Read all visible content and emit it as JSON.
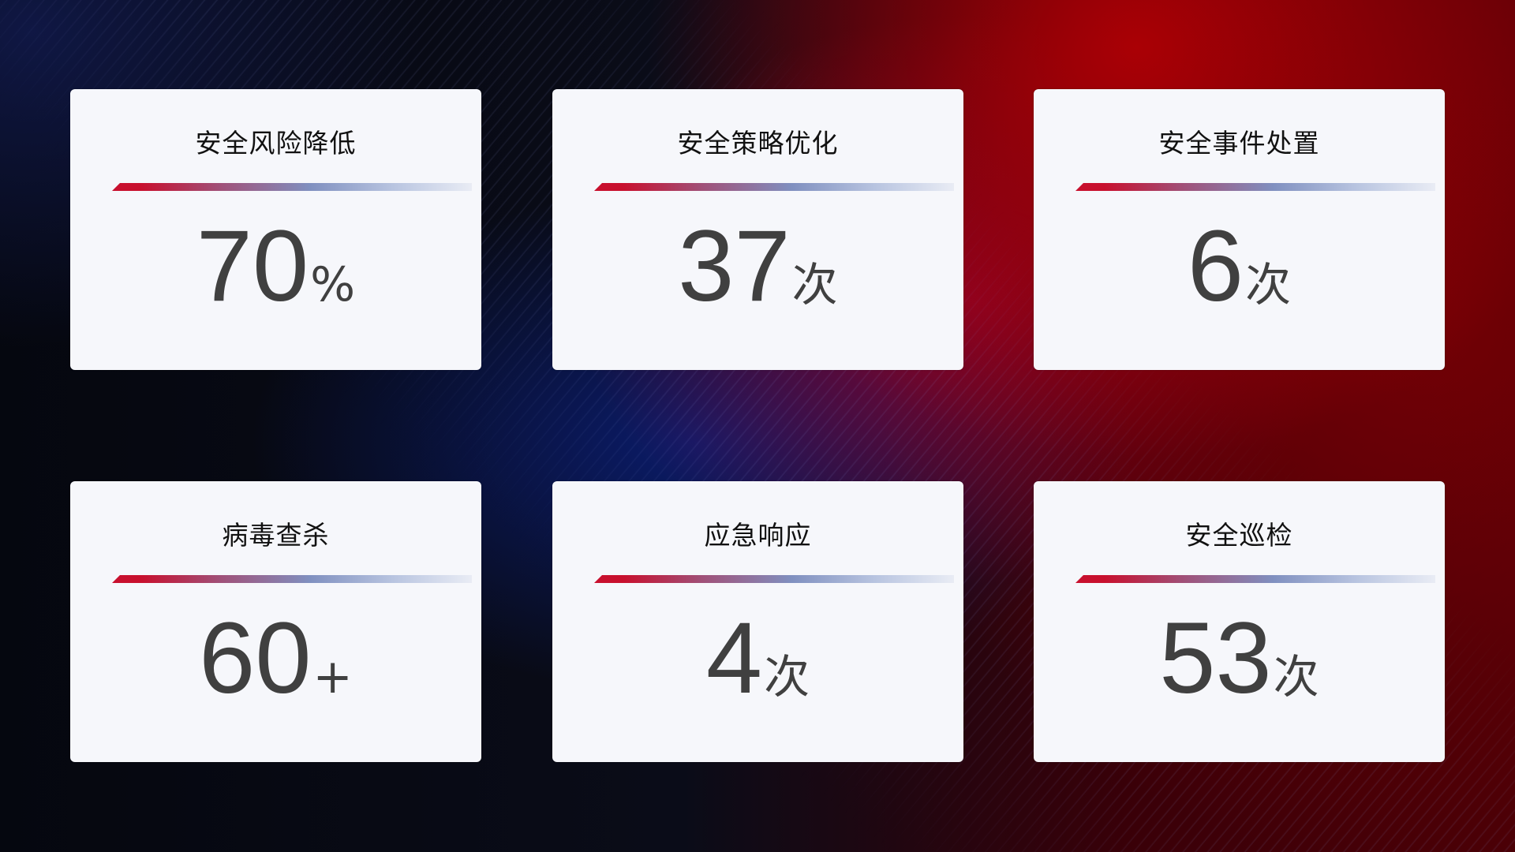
{
  "cards": [
    {
      "title": "安全风险降低",
      "value": "70",
      "unit": "%"
    },
    {
      "title": "安全策略优化",
      "value": "37",
      "unit": "次"
    },
    {
      "title": "安全事件处置",
      "value": "6",
      "unit": "次"
    },
    {
      "title": "病毒查杀",
      "value": "60",
      "unit": "+"
    },
    {
      "title": "应急响应",
      "value": "4",
      "unit": "次"
    },
    {
      "title": "安全巡检",
      "value": "53",
      "unit": "次"
    }
  ],
  "colors": {
    "accent_red": "#c8102e",
    "accent_blue": "#8090c0",
    "card_bg": "#f6f7fb",
    "value_text": "#404040"
  }
}
